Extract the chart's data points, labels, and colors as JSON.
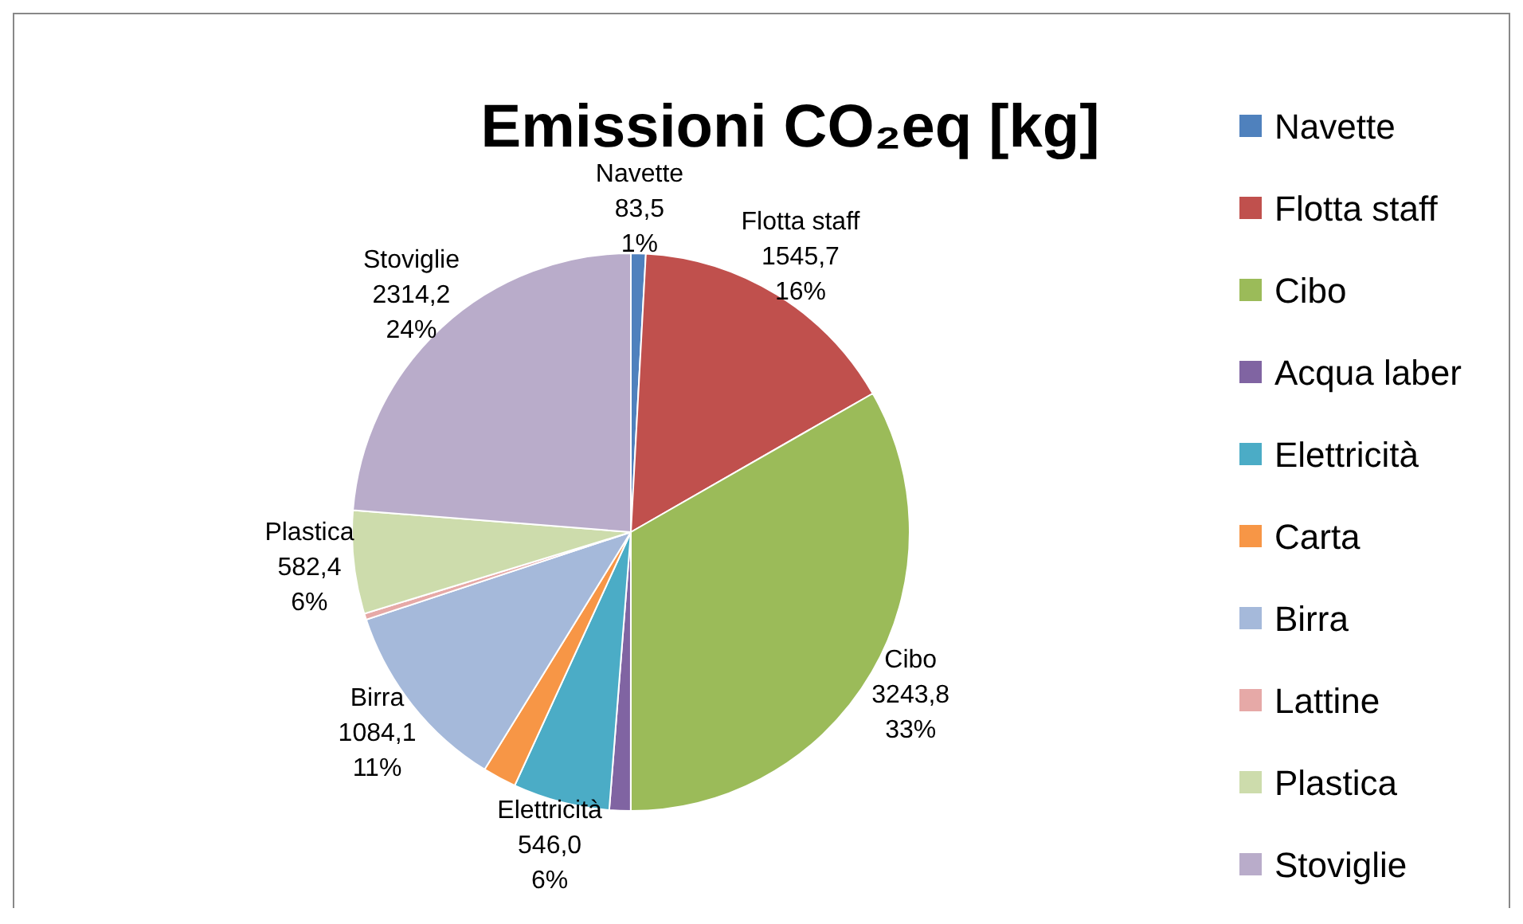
{
  "chart_data": {
    "type": "pie",
    "title": "Emissioni CO₂eq [kg]",
    "categories": [
      "Navette",
      "Flotta staff",
      "Cibo",
      "Acqua laber",
      "Elettricità",
      "Carta",
      "Birra",
      "Lattine",
      "Plastica",
      "Stoviglie"
    ],
    "values": [
      83.5,
      1545.7,
      3243.8,
      120,
      546.0,
      190,
      1084.1,
      35,
      582.4,
      2314.2
    ],
    "colors": [
      "#4f81bd",
      "#c0504d",
      "#9bbb59",
      "#8064a2",
      "#4bacc6",
      "#f79646",
      "#a5b9da",
      "#e6a9a7",
      "#cddcac",
      "#b9acca"
    ],
    "value_labels": [
      "83,5\n1%",
      "1545,7\n16%",
      "3243,8\n33%",
      null,
      "546,0\n6%",
      null,
      "1084,1\n11%",
      null,
      "582,4\n6%",
      "2314,2\n24%"
    ],
    "legend": "right"
  }
}
